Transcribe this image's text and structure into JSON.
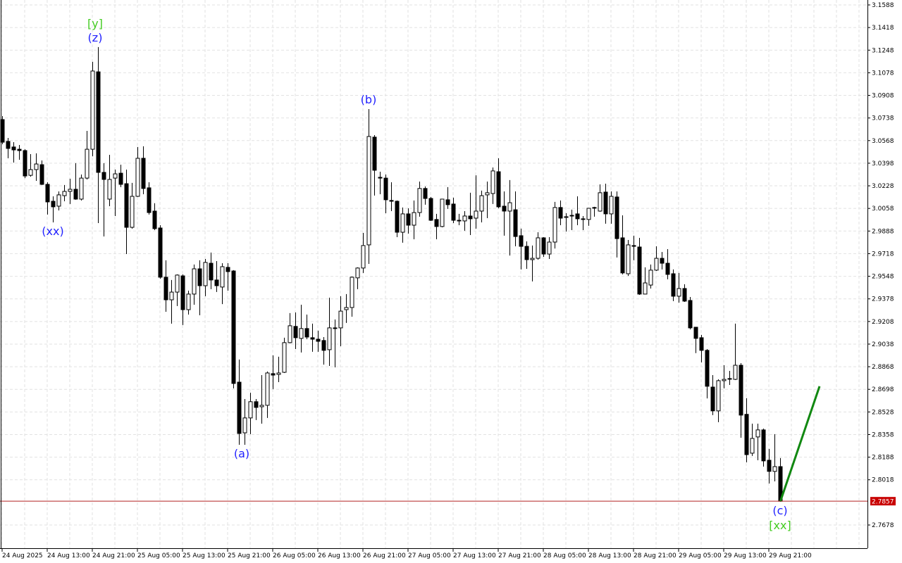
{
  "chart_data": {
    "type": "candlestick",
    "title": "",
    "xlabel": "",
    "ylabel": "",
    "ylim": [
      2.7678,
      3.1588
    ],
    "grid": true,
    "colors": {
      "bull_body": "#ffffff",
      "bear_body": "#000000",
      "candle_outline": "#000000",
      "grid": "#e2e2e2",
      "price_line": "#b22222",
      "price_tag": "#c80000",
      "projection": "#118811",
      "wave_label": "#2222ff",
      "bracket_label": "#44cc22"
    },
    "y_ticks": [
      "3.1588",
      "3.1418",
      "3.1248",
      "3.1078",
      "3.0908",
      "3.0738",
      "3.0568",
      "3.0398",
      "3.0228",
      "3.0058",
      "2.9888",
      "2.9718",
      "2.9548",
      "2.9378",
      "2.9208",
      "2.9038",
      "2.8868",
      "2.8698",
      "2.8528",
      "2.8358",
      "2.8188",
      "2.8018",
      "2.7678"
    ],
    "x_ticks": [
      {
        "candle": 0,
        "label": "24 Aug 2025"
      },
      {
        "candle": 8,
        "label": "24 Aug 13:00"
      },
      {
        "candle": 16,
        "label": "24 Aug 21:00"
      },
      {
        "candle": 24,
        "label": "25 Aug 05:00"
      },
      {
        "candle": 32,
        "label": "25 Aug 13:00"
      },
      {
        "candle": 40,
        "label": "25 Aug 21:00"
      },
      {
        "candle": 48,
        "label": "26 Aug 05:00"
      },
      {
        "candle": 56,
        "label": "26 Aug 13:00"
      },
      {
        "candle": 64,
        "label": "26 Aug 21:00"
      },
      {
        "candle": 72,
        "label": "27 Aug 05:00"
      },
      {
        "candle": 80,
        "label": "27 Aug 13:00"
      },
      {
        "candle": 88,
        "label": "27 Aug 21:00"
      },
      {
        "candle": 96,
        "label": "28 Aug 05:00"
      },
      {
        "candle": 104,
        "label": "28 Aug 13:00"
      },
      {
        "candle": 112,
        "label": "28 Aug 21:00"
      },
      {
        "candle": 120,
        "label": "29 Aug 05:00"
      },
      {
        "candle": 128,
        "label": "29 Aug 13:00"
      },
      {
        "candle": 136,
        "label": "29 Aug 21:00"
      }
    ],
    "current_price": "2.7857",
    "ohlc_fields": [
      "open",
      "high",
      "low",
      "close"
    ],
    "candles": [
      [
        3.0726,
        3.0752,
        3.0541,
        3.0556
      ],
      [
        3.0562,
        3.0588,
        3.0435,
        3.0509
      ],
      [
        3.052,
        3.0556,
        3.0403,
        3.0498
      ],
      [
        3.0503,
        3.0535,
        3.0424,
        3.0493
      ],
      [
        3.0493,
        3.0503,
        3.0286,
        3.0302
      ],
      [
        3.0307,
        3.0466,
        3.0297,
        3.035
      ],
      [
        3.035,
        3.0472,
        3.0265,
        3.0392
      ],
      [
        3.0387,
        3.0419,
        3.0234,
        3.0239
      ],
      [
        3.0239,
        3.0255,
        3.0012,
        3.0107
      ],
      [
        3.0112,
        3.0149,
        2.9953,
        3.007
      ],
      [
        3.0075,
        3.0186,
        3.0043,
        3.016
      ],
      [
        3.0154,
        3.0234,
        3.0112,
        3.0186
      ],
      [
        3.0186,
        3.0281,
        3.0091,
        3.0202
      ],
      [
        3.0202,
        3.0398,
        3.0123,
        3.0128
      ],
      [
        3.0128,
        3.0313,
        3.0118,
        3.0286
      ],
      [
        3.0286,
        3.0641,
        3.0276,
        3.0503
      ],
      [
        3.0503,
        3.116,
        3.045,
        3.1091
      ],
      [
        3.1085,
        3.1271,
        2.9948,
        3.0329
      ],
      [
        3.0329,
        3.0398,
        2.9847,
        3.0276
      ],
      [
        3.0128,
        3.0461,
        3.0075,
        3.0276
      ],
      [
        3.0286,
        3.035,
        3.0001,
        3.0318
      ],
      [
        3.0323,
        3.0387,
        3.0218,
        3.0239
      ],
      [
        3.0244,
        3.035,
        2.9715,
        2.9916
      ],
      [
        2.9916,
        3.025,
        2.9906,
        3.0149
      ],
      [
        3.0149,
        3.052,
        3.0144,
        3.0435
      ],
      [
        3.0435,
        3.0525,
        3.0165,
        3.0208
      ],
      [
        3.0213,
        3.0255,
        3.0012,
        3.0027
      ],
      [
        3.0038,
        3.0097,
        2.9895,
        2.9906
      ],
      [
        2.9911,
        2.9932,
        2.953,
        2.9541
      ],
      [
        2.9541,
        2.9668,
        2.9281,
        2.9371
      ],
      [
        2.9371,
        2.952,
        2.9192,
        2.9429
      ],
      [
        2.9429,
        2.9562,
        2.9324,
        2.9557
      ],
      [
        2.9551,
        2.9562,
        2.9181,
        2.9297
      ],
      [
        2.9297,
        2.944,
        2.926,
        2.9414
      ],
      [
        2.9414,
        2.9636,
        2.9334,
        2.9604
      ],
      [
        2.9604,
        2.9668,
        2.9255,
        2.9477
      ],
      [
        2.9477,
        2.9678,
        2.9398,
        2.9652
      ],
      [
        2.9646,
        2.9726,
        2.9451,
        2.952
      ],
      [
        2.952,
        2.9662,
        2.943,
        2.9477
      ],
      [
        2.9467,
        2.9646,
        2.9339,
        2.962
      ],
      [
        2.9615,
        2.9646,
        2.944,
        2.9583
      ],
      [
        2.9588,
        2.9594,
        2.8705,
        2.8742
      ],
      [
        2.8752,
        2.8922,
        2.8281,
        2.8366
      ],
      [
        2.8371,
        2.8625,
        2.8281,
        2.8483
      ],
      [
        2.8483,
        2.8673,
        2.8361,
        2.8605
      ],
      [
        2.8605,
        2.8625,
        2.8467,
        2.8562
      ],
      [
        2.8567,
        2.8805,
        2.844,
        2.8578
      ],
      [
        2.8578,
        2.8832,
        2.8483,
        2.8821
      ],
      [
        2.8816,
        2.8953,
        2.87,
        2.8805
      ],
      [
        2.881,
        2.8943,
        2.8752,
        2.8821
      ],
      [
        2.8826,
        2.9086,
        2.8821,
        2.9049
      ],
      [
        2.9049,
        2.9271,
        2.9044,
        2.9176
      ],
      [
        2.9171,
        2.9276,
        2.9001,
        2.9086
      ],
      [
        2.9081,
        2.9334,
        2.8975,
        2.9155
      ],
      [
        2.9155,
        2.926,
        2.9075,
        2.9091
      ],
      [
        2.9086,
        2.9192,
        2.898,
        2.9075
      ],
      [
        2.9075,
        2.9139,
        2.898,
        2.9059
      ],
      [
        2.9065,
        2.9091,
        2.8884,
        2.8991
      ],
      [
        2.8996,
        2.9387,
        2.8874,
        2.916
      ],
      [
        2.9155,
        2.9223,
        2.8863,
        2.916
      ],
      [
        2.916,
        2.9398,
        2.9022,
        2.9286
      ],
      [
        2.9297,
        2.9414,
        2.9197,
        2.9313
      ],
      [
        2.9313,
        2.9546,
        2.9244,
        2.9541
      ],
      [
        2.9536,
        2.9615,
        2.9451,
        2.961
      ],
      [
        2.961,
        2.9874,
        2.9573,
        2.9779
      ],
      [
        2.9784,
        3.0805,
        2.9641,
        3.0599
      ],
      [
        3.0594,
        3.0609,
        3.0155,
        3.0345
      ],
      [
        3.0292,
        3.0334,
        3.0165,
        3.0286
      ],
      [
        3.0286,
        3.0313,
        3.0022,
        3.0123
      ],
      [
        3.0118,
        3.0255,
        3.0038,
        3.0112
      ],
      [
        3.0112,
        3.0118,
        2.9842,
        2.9879
      ],
      [
        2.9879,
        3.0065,
        2.98,
        3.0017
      ],
      [
        3.0017,
        3.0059,
        2.9869,
        2.9932
      ],
      [
        2.9932,
        3.0118,
        2.9826,
        3.0027
      ],
      [
        3.0027,
        3.026,
        2.9996,
        3.0208
      ],
      [
        3.0208,
        3.0223,
        3.0086,
        3.0133
      ],
      [
        3.0133,
        3.0144,
        2.9964,
        2.9969
      ],
      [
        2.9975,
        3.0017,
        2.9826,
        2.9922
      ],
      [
        2.9922,
        3.0128,
        2.9916,
        3.0128
      ],
      [
        3.0123,
        3.0218,
        3.0054,
        3.0086
      ],
      [
        3.0091,
        3.0139,
        2.9948,
        2.9969
      ],
      [
        2.9969,
        3.0017,
        2.9932,
        2.9964
      ],
      [
        2.9964,
        3.0038,
        2.989,
        3.0001
      ],
      [
        3.0001,
        3.0176,
        2.9858,
        2.998
      ],
      [
        2.9985,
        3.0307,
        2.9906,
        3.0038
      ],
      [
        3.0038,
        3.0192,
        2.9953,
        3.0154
      ],
      [
        3.016,
        3.026,
        2.9985,
        3.0176
      ],
      [
        3.017,
        3.0366,
        3.0091,
        3.034
      ],
      [
        3.0334,
        3.0435,
        3.0059,
        3.007
      ],
      [
        3.0075,
        3.0186,
        2.9853,
        3.0038
      ],
      [
        3.0038,
        3.0271,
        2.9704,
        3.0101
      ],
      [
        3.0048,
        3.0186,
        2.9773,
        2.9847
      ],
      [
        2.9853,
        2.9906,
        2.9599,
        2.9773
      ],
      [
        2.9773,
        2.981,
        2.9604,
        2.9673
      ],
      [
        2.9673,
        2.9779,
        2.9509,
        2.9683
      ],
      [
        2.9683,
        2.9879,
        2.9673,
        2.9837
      ],
      [
        2.9837,
        2.9842,
        2.9694,
        2.9715
      ],
      [
        2.9715,
        2.9842,
        2.9678,
        2.9805
      ],
      [
        2.9805,
        3.0107,
        2.9757,
        3.0065
      ],
      [
        3.0065,
        3.0118,
        2.9932,
        2.9985
      ],
      [
        2.999,
        3.0022,
        2.9884,
        2.9996
      ],
      [
        3.0001,
        3.0049,
        2.9895,
        3.0006
      ],
      [
        3.0017,
        3.0149,
        2.9932,
        2.998
      ],
      [
        2.998,
        3.0001,
        2.9895,
        2.998
      ],
      [
        2.9975,
        3.0059,
        2.9927,
        3.0059
      ],
      [
        3.0065,
        3.007,
        2.9996,
        3.0065
      ],
      [
        3.0038,
        3.0239,
        3.0033,
        3.0176
      ],
      [
        3.0181,
        3.0244,
        2.9943,
        3.0017
      ],
      [
        3.0017,
        3.0186,
        2.9943,
        3.0149
      ],
      [
        3.0144,
        3.0186,
        2.9689,
        2.9831
      ],
      [
        2.9837,
        3.0006,
        2.9562,
        2.9573
      ],
      [
        2.9567,
        2.9821,
        2.9551,
        2.9784
      ],
      [
        2.9779,
        2.9853,
        2.9668,
        2.9773
      ],
      [
        2.9768,
        2.9837,
        2.9408,
        2.9414
      ],
      [
        2.9414,
        2.9615,
        2.9414,
        2.9498
      ],
      [
        2.9482,
        2.9636,
        2.9456,
        2.9594
      ],
      [
        2.9594,
        2.9773,
        2.9588,
        2.9683
      ],
      [
        2.9683,
        2.9731,
        2.9599,
        2.9646
      ],
      [
        2.9646,
        2.9752,
        2.9525,
        2.9562
      ],
      [
        2.9567,
        2.9599,
        2.9361,
        2.9398
      ],
      [
        2.9398,
        2.9573,
        2.935,
        2.9456
      ],
      [
        2.9456,
        2.9488,
        2.9355,
        2.9361
      ],
      [
        2.9366,
        2.9392,
        2.9149,
        2.916
      ],
      [
        2.9165,
        2.9165,
        2.897,
        2.9081
      ],
      [
        2.9086,
        2.9107,
        2.89,
        2.8991
      ],
      [
        2.8991,
        2.9001,
        2.863,
        2.8721
      ],
      [
        2.8715,
        2.8805,
        2.8504,
        2.8536
      ],
      [
        2.8536,
        2.8773,
        2.8451,
        2.8763
      ],
      [
        2.8763,
        2.8879,
        2.8705,
        2.8773
      ],
      [
        2.8779,
        2.8837,
        2.8731,
        2.8779
      ],
      [
        2.8773,
        2.9192,
        2.8768,
        2.8879
      ],
      [
        2.8879,
        2.8895,
        2.8334,
        2.8504
      ],
      [
        2.851,
        2.8632,
        2.8149,
        2.8207
      ],
      [
        2.8218,
        2.844,
        2.8197,
        2.8329
      ],
      [
        2.834,
        2.844,
        2.8165,
        2.8393
      ],
      [
        2.8393,
        2.8403,
        2.8117,
        2.816
      ],
      [
        2.8165,
        2.825,
        2.799,
        2.8081
      ],
      [
        2.8081,
        2.8361,
        2.8006,
        2.8117
      ],
      [
        2.8117,
        2.8181,
        2.7853,
        2.7857
      ]
    ],
    "projection": {
      "from": {
        "candle": 138,
        "price": 2.7857
      },
      "to": {
        "candle": 145,
        "price": 2.8721
      }
    },
    "wave_labels": [
      {
        "text": "(xx)",
        "candle": 9,
        "position": "below",
        "kind": "wave"
      },
      {
        "text": "(z)",
        "candle": 16.5,
        "position": "above",
        "kind": "wave"
      },
      {
        "text": "[y]",
        "candle": 16.5,
        "position": "above",
        "kind": "bracket"
      },
      {
        "text": "(a)",
        "candle": 42.5,
        "position": "below",
        "kind": "wave"
      },
      {
        "text": "(b)",
        "candle": 65,
        "position": "above",
        "kind": "wave"
      },
      {
        "text": "(c)",
        "candle": 138,
        "position": "below",
        "kind": "wave"
      },
      {
        "text": "[xx]",
        "candle": 138,
        "position": "below",
        "kind": "bracket"
      }
    ]
  }
}
